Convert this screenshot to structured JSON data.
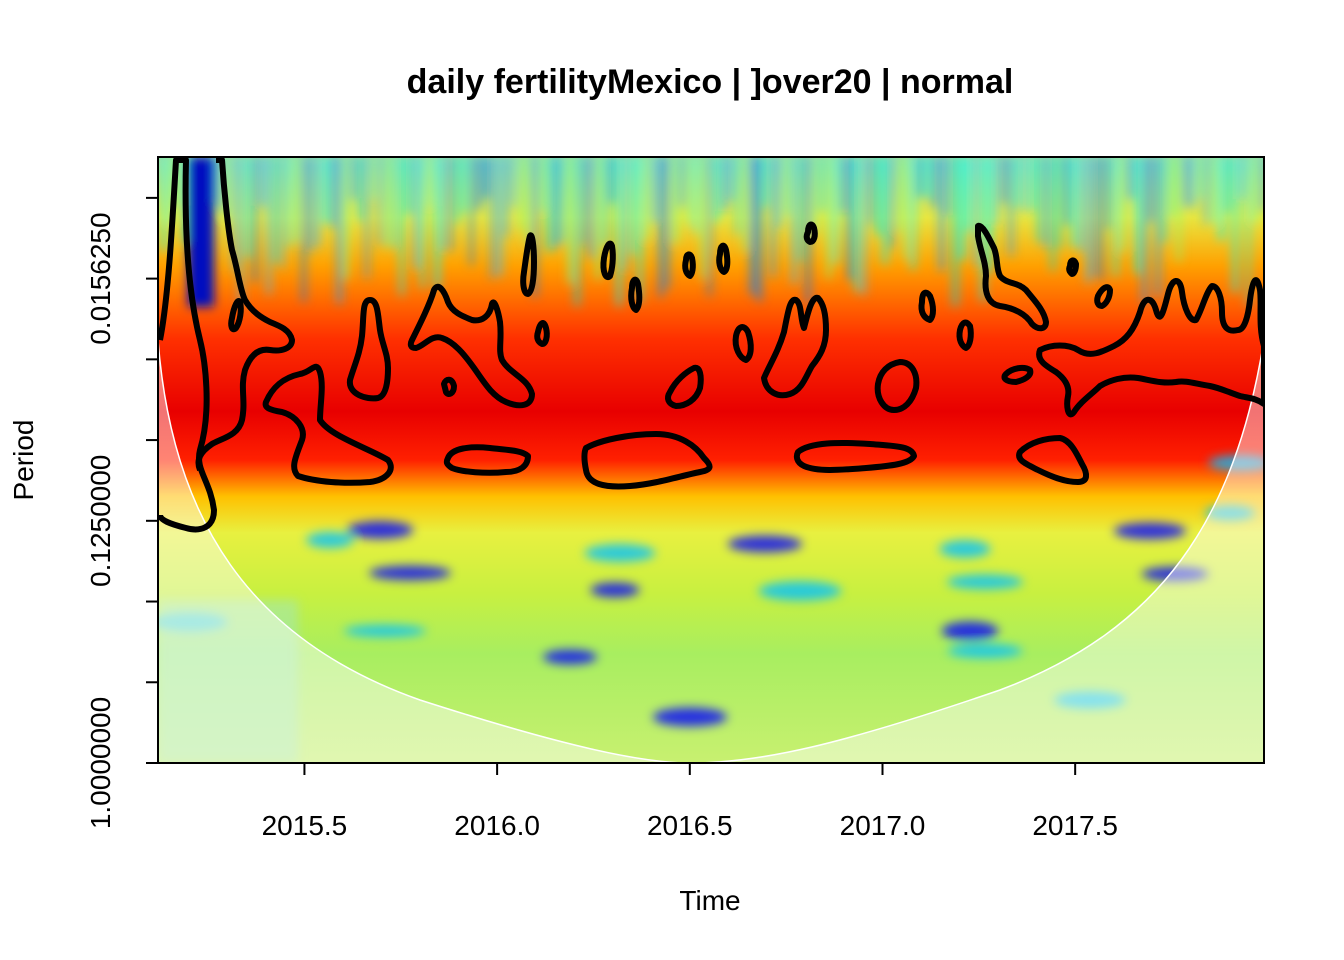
{
  "chart_data": {
    "type": "heatmap",
    "title": "daily fertilityMexico | ]over20 | normal",
    "xlabel": "Time",
    "ylabel": "Period",
    "x_range": [
      2015.12,
      2017.99
    ],
    "x_ticks": [
      {
        "value": 2015.5,
        "label": "2015.5"
      },
      {
        "value": 2016.0,
        "label": "2016.0"
      },
      {
        "value": 2016.5,
        "label": "2016.5"
      },
      {
        "value": 2017.0,
        "label": "2017.0"
      },
      {
        "value": 2017.5,
        "label": "2017.5"
      }
    ],
    "y_scale": "log2",
    "y_range": [
      0.0055,
      1.0
    ],
    "y_ticks": [
      {
        "value": 0.0078125,
        "label": ""
      },
      {
        "value": 0.015625,
        "label": "0.0156250"
      },
      {
        "value": 0.03125,
        "label": ""
      },
      {
        "value": 0.0625,
        "label": ""
      },
      {
        "value": 0.125,
        "label": "0.1250000"
      },
      {
        "value": 0.25,
        "label": ""
      },
      {
        "value": 0.5,
        "label": ""
      },
      {
        "value": 1.0,
        "label": "1.0000000"
      }
    ],
    "colors": {
      "palette": [
        "#00007f",
        "#0000ff",
        "#007fff",
        "#00ffff",
        "#7fff7f",
        "#ffff00",
        "#ff7f00",
        "#ff0000",
        "#7f0000"
      ],
      "significance_contour": "#000000",
      "cone_of_influence": "#ffffff"
    },
    "power_bands": [
      {
        "period_from": 0.0055,
        "period_to": 0.018,
        "level": "high-frequency mixed (blue/cyan/yellow)"
      },
      {
        "period_from": 0.018,
        "period_to": 0.045,
        "level": "orange/red"
      },
      {
        "period_from": 0.045,
        "period_to": 0.1,
        "level": "red (highest power)"
      },
      {
        "period_from": 0.1,
        "period_to": 0.35,
        "level": "yellow/green"
      },
      {
        "period_from": 0.35,
        "period_to": 1.0,
        "level": "green/cyan"
      }
    ],
    "significant_regions_count": 27,
    "grid": false,
    "legend": "none"
  }
}
